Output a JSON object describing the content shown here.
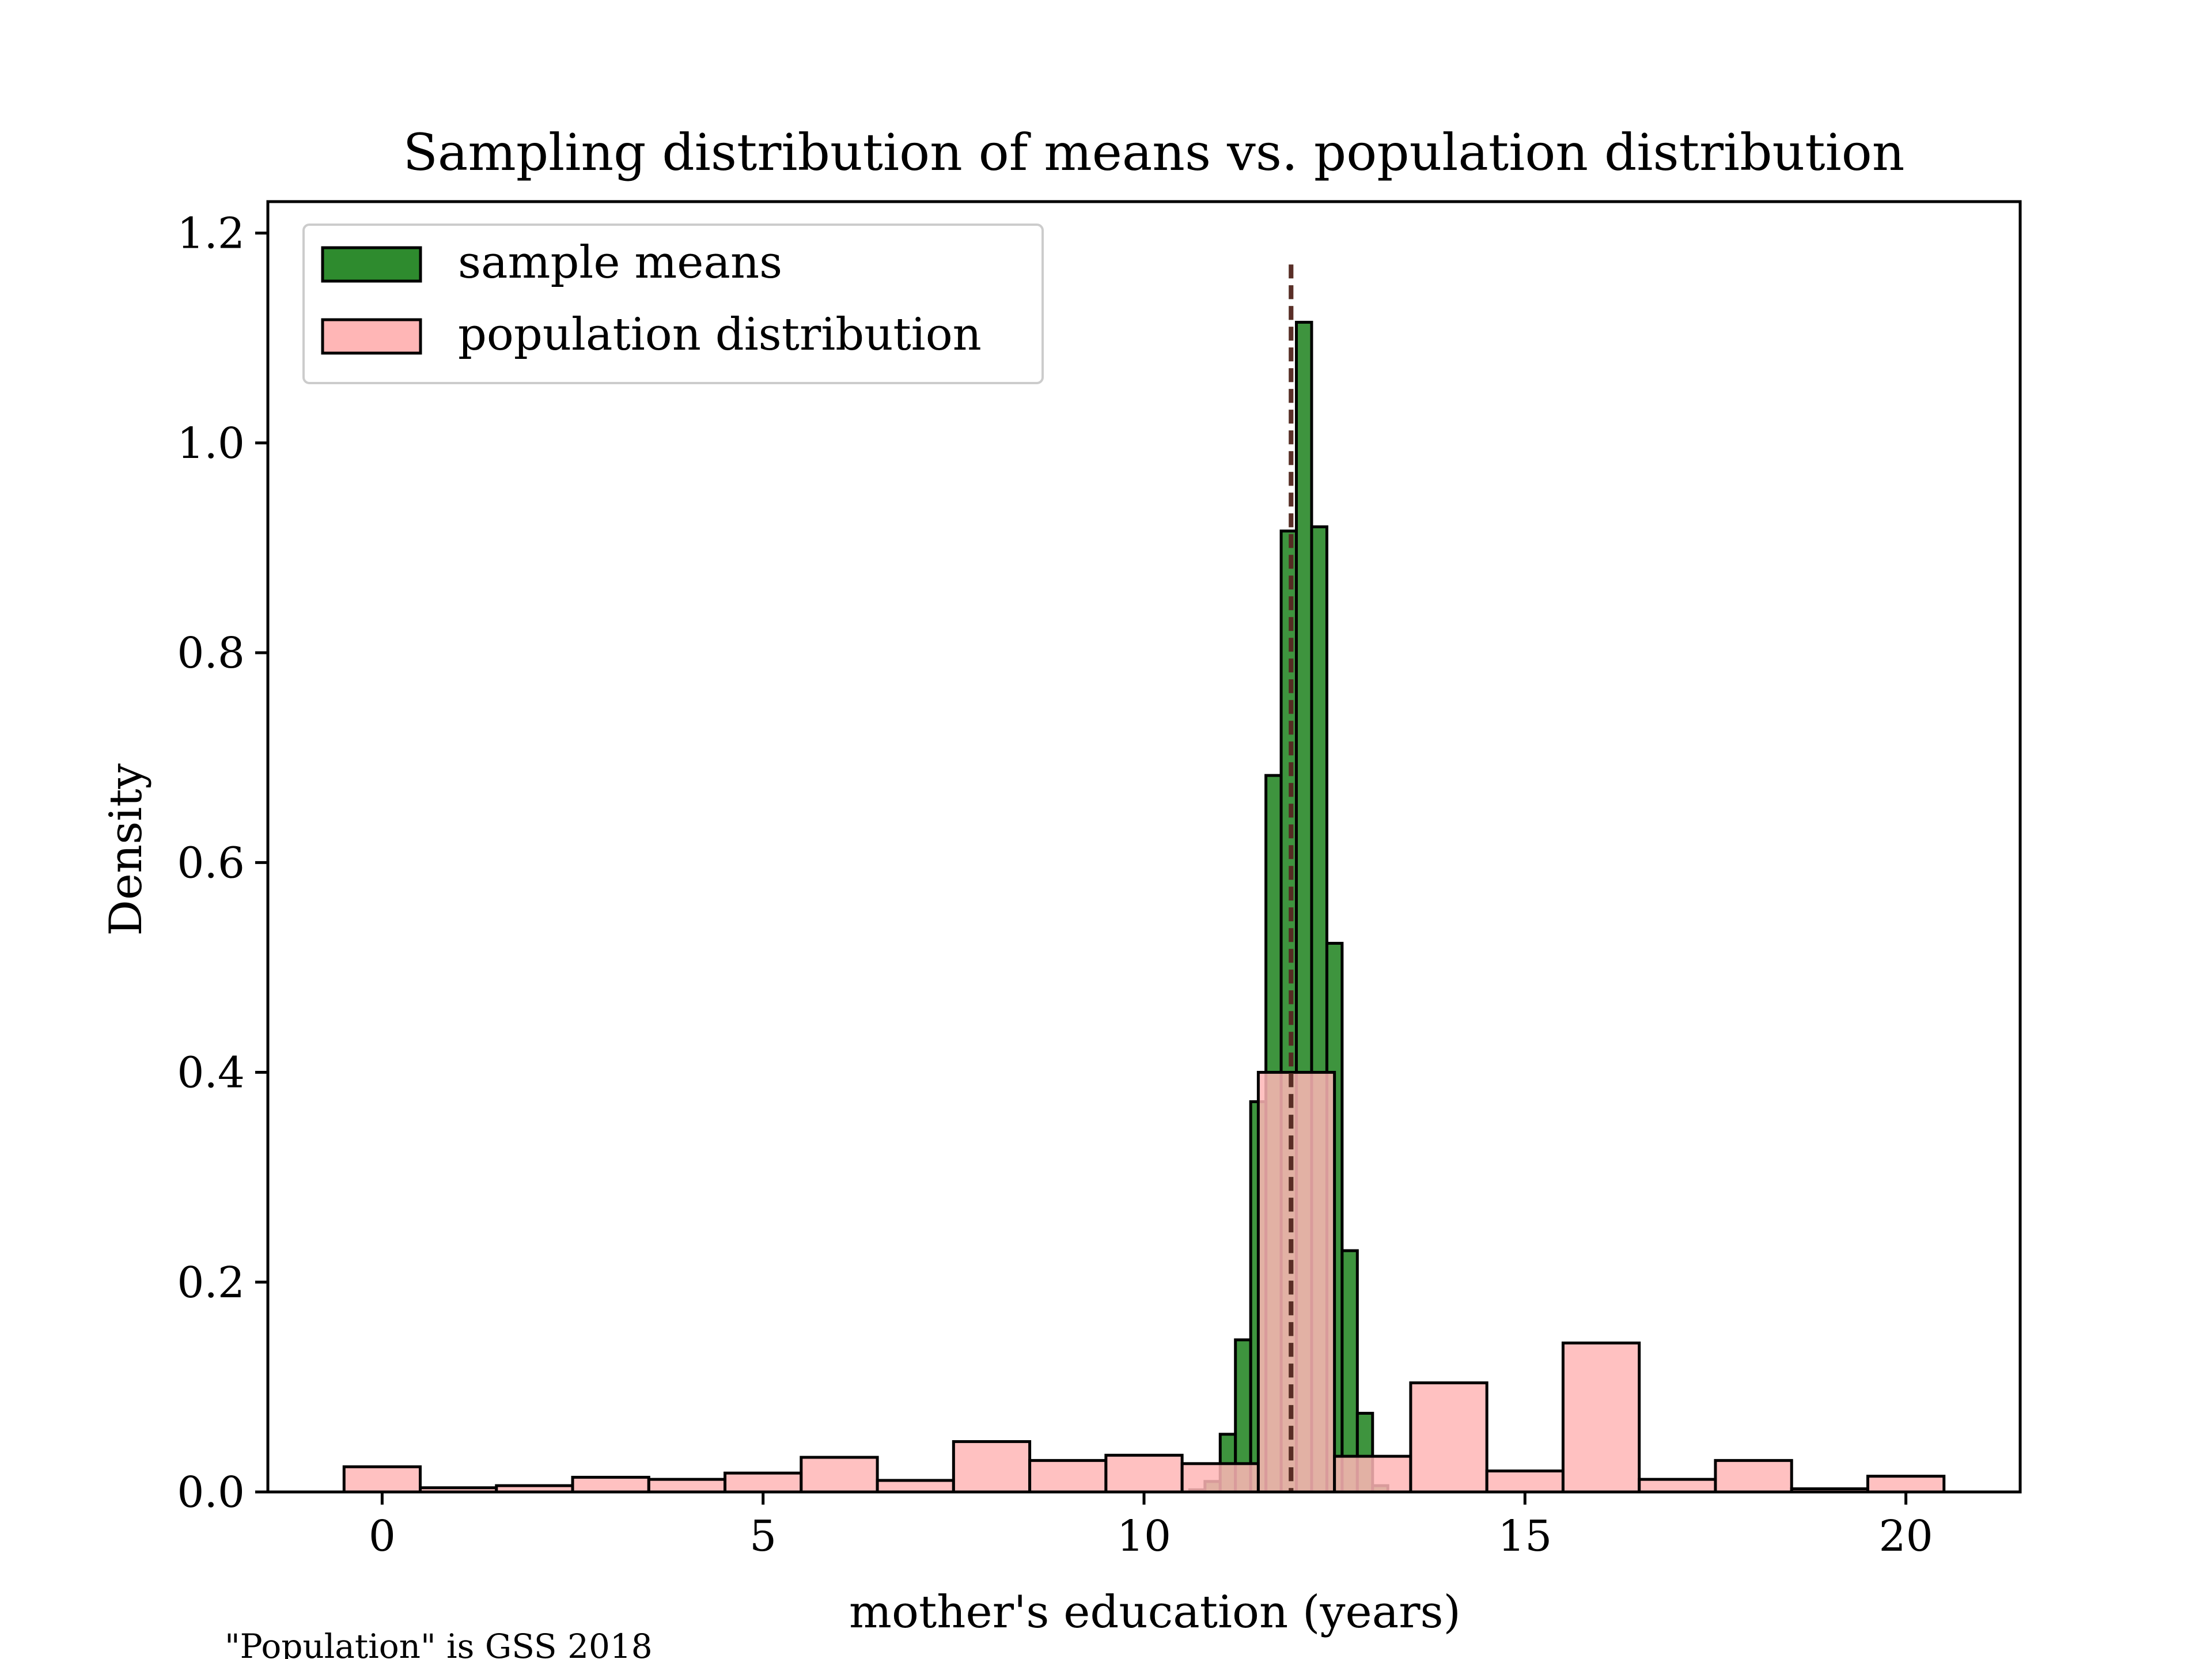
{
  "chart_data": {
    "type": "bar",
    "title": "Sampling distribution of means vs. population distribution",
    "xlabel": "mother's education (years)",
    "ylabel": "Density",
    "caption": "\"Population\" is GSS 2018",
    "xlim": [
      -1.5,
      21.5
    ],
    "ylim": [
      0,
      1.23
    ],
    "xticks": [
      0,
      5,
      10,
      15,
      20
    ],
    "yticks": [
      0.0,
      0.2,
      0.4,
      0.6,
      0.8,
      1.0,
      1.2
    ],
    "xtick_labels": [
      "0",
      "5",
      "10",
      "15",
      "20"
    ],
    "ytick_labels": [
      "0.0",
      "0.2",
      "0.4",
      "0.6",
      "0.8",
      "1.0",
      "1.2"
    ],
    "legend_position": "top-left",
    "legend": [
      {
        "label": "sample means",
        "color": "#2e8b2e"
      },
      {
        "label": "population distribution",
        "color": "#ffb6b6"
      }
    ],
    "series": [
      {
        "name": "sample means",
        "color": "#2e8b2e",
        "opacity": 0.92,
        "bin_width": 0.2,
        "bin_starts": [
          10.6,
          10.8,
          11.0,
          11.2,
          11.4,
          11.6,
          11.8,
          12.0,
          12.2,
          12.4,
          12.6,
          12.8,
          13.0
        ],
        "values": [
          0.002,
          0.01,
          0.055,
          0.145,
          0.372,
          0.683,
          0.916,
          1.115,
          0.92,
          0.523,
          0.23,
          0.075,
          0.006
        ]
      },
      {
        "name": "population distribution",
        "color": "#ffb6b6",
        "opacity": 0.85,
        "bin_width": 1.0,
        "bin_starts": [
          -0.5,
          0.5,
          1.5,
          2.5,
          3.5,
          4.5,
          5.5,
          6.5,
          7.5,
          8.5,
          9.5,
          10.5,
          11.5,
          12.5,
          13.5,
          14.5,
          15.5,
          16.5,
          17.5,
          18.5,
          19.5
        ],
        "values": [
          0.024,
          0.004,
          0.006,
          0.014,
          0.012,
          0.018,
          0.033,
          0.011,
          0.048,
          0.03,
          0.035,
          0.027,
          0.4,
          0.034,
          0.104,
          0.02,
          0.142,
          0.012,
          0.03,
          0.003,
          0.015
        ]
      }
    ],
    "mean_lines": [
      {
        "x": 11.93,
        "color": "#3a6e3a",
        "style": "dashed"
      },
      {
        "x": 11.93,
        "color": "#5a1e1e",
        "style": "dashed"
      }
    ]
  }
}
